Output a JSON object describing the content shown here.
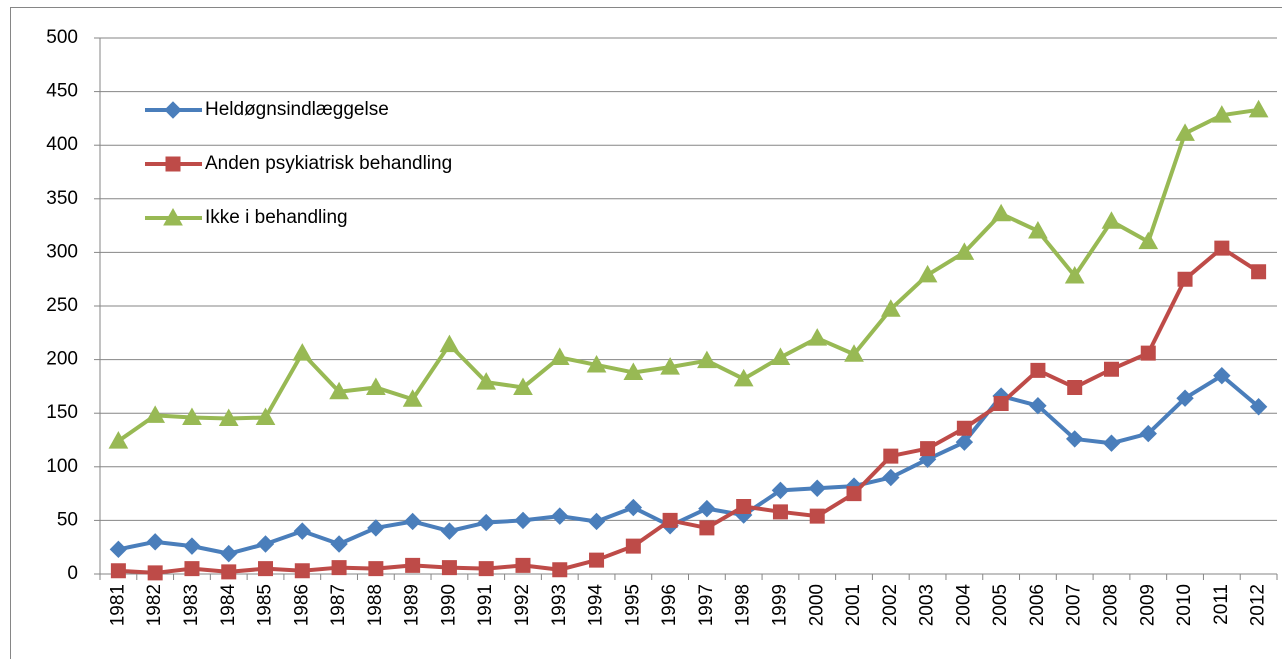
{
  "chart_data": {
    "type": "line",
    "categories": [
      "1981",
      "1982",
      "1983",
      "1984",
      "1985",
      "1986",
      "1987",
      "1988",
      "1989",
      "1990",
      "1991",
      "1992",
      "1993",
      "1994",
      "1995",
      "1996",
      "1997",
      "1998",
      "1999",
      "2000",
      "2001",
      "2002",
      "2003",
      "2004",
      "2005",
      "2006",
      "2007",
      "2008",
      "2009",
      "2010",
      "2011",
      "2012"
    ],
    "series": [
      {
        "name": "Heldøgnsindlæggelse",
        "color": "#4a7ebb",
        "marker": "diamond",
        "values": [
          23,
          30,
          26,
          19,
          28,
          40,
          28,
          43,
          49,
          40,
          48,
          50,
          54,
          49,
          62,
          45,
          61,
          55,
          78,
          80,
          82,
          90,
          107,
          123,
          166,
          157,
          126,
          122,
          131,
          164,
          185,
          156
        ]
      },
      {
        "name": "Anden psykiatrisk behandling",
        "color": "#be4b48",
        "marker": "square",
        "values": [
          3,
          1,
          5,
          2,
          5,
          3,
          6,
          5,
          8,
          6,
          5,
          8,
          4,
          13,
          26,
          50,
          43,
          63,
          58,
          54,
          75,
          110,
          117,
          136,
          159,
          190,
          174,
          191,
          206,
          275,
          304,
          282
        ]
      },
      {
        "name": "Ikke i behandling",
        "color": "#98b954",
        "marker": "triangle",
        "values": [
          124,
          148,
          146,
          145,
          146,
          206,
          170,
          174,
          163,
          214,
          179,
          174,
          202,
          195,
          188,
          193,
          199,
          182,
          202,
          220,
          205,
          247,
          279,
          300,
          336,
          320,
          278,
          329,
          310,
          411,
          428,
          433
        ]
      }
    ],
    "ylim": [
      0,
      500
    ],
    "yticks": [
      0,
      50,
      100,
      150,
      200,
      250,
      300,
      350,
      400,
      450,
      500
    ],
    "grid": true,
    "legend": "upper left"
  }
}
